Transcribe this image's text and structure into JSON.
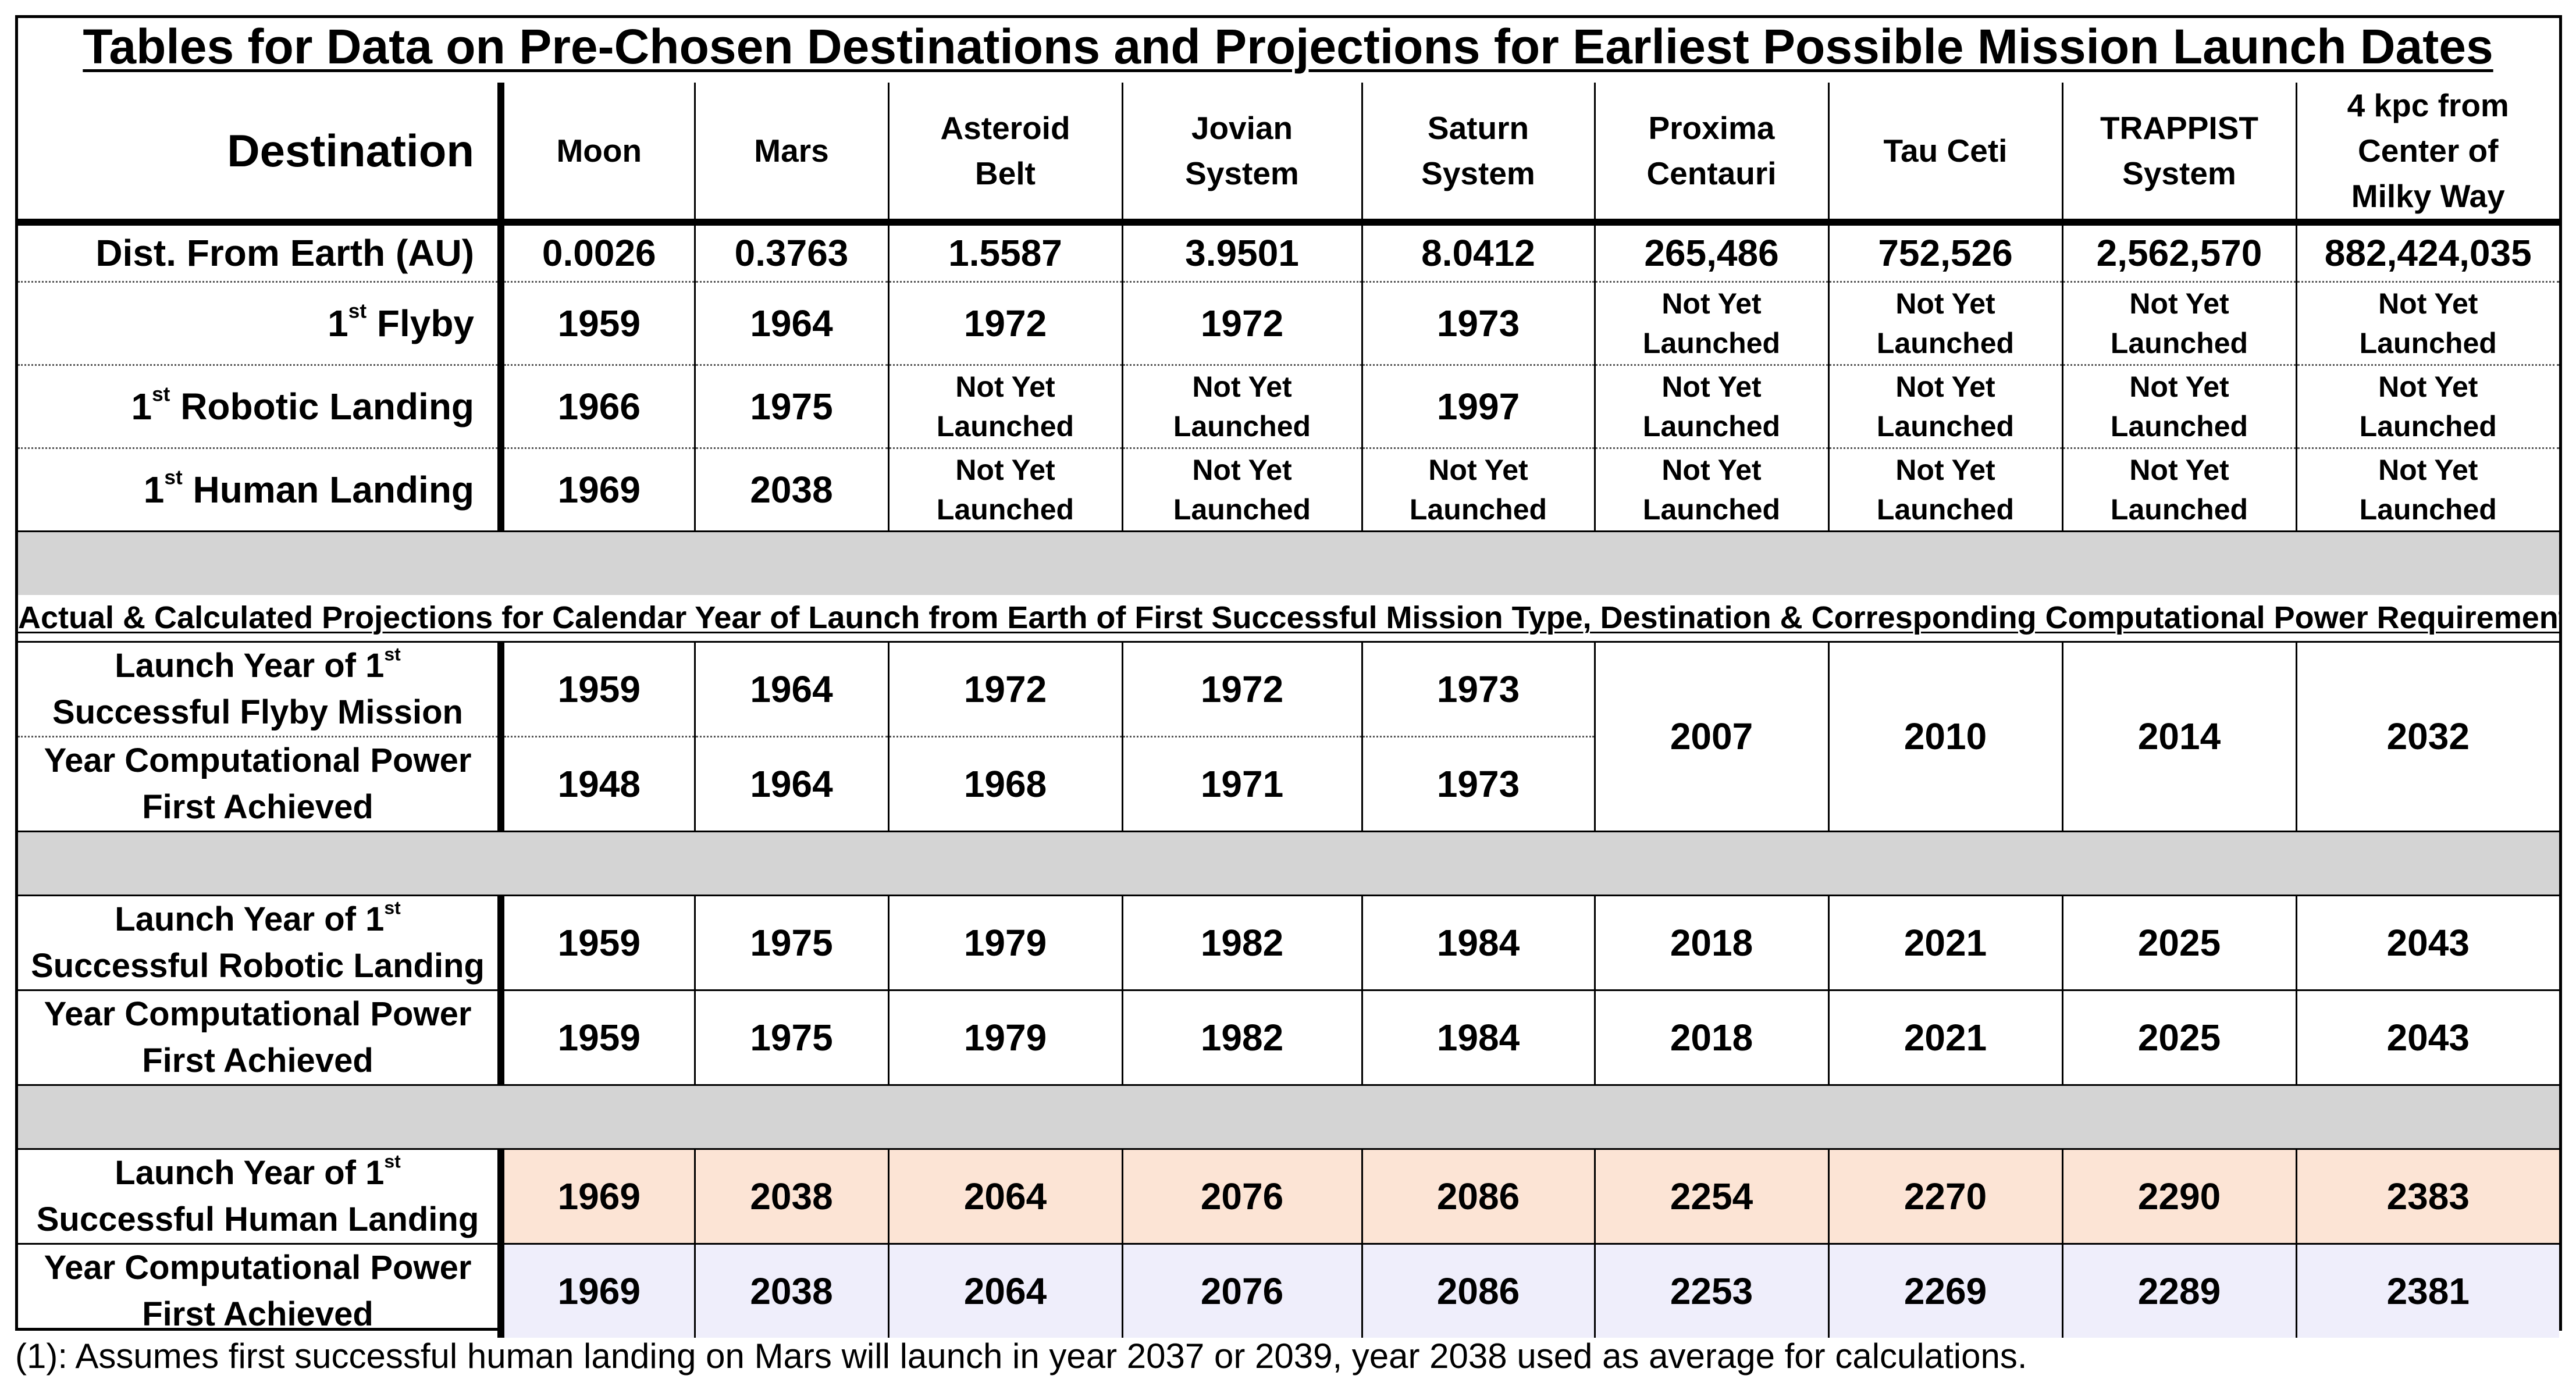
{
  "title": "Tables for Data on Pre-Chosen Destinations and Projections for Earliest Possible Mission Launch Dates",
  "header": {
    "label": "Destination",
    "destinations": [
      [
        "Moon"
      ],
      [
        "Mars"
      ],
      [
        "Asteroid",
        "Belt"
      ],
      [
        "Jovian",
        "System"
      ],
      [
        "Saturn",
        "System"
      ],
      [
        "Proxima",
        "Centauri"
      ],
      [
        "Tau Ceti"
      ],
      [
        "TRAPPIST",
        "System"
      ],
      [
        "4 kpc from",
        "Center of",
        "Milky Way"
      ]
    ]
  },
  "table1": {
    "distance": {
      "label": "Dist. From Earth (AU)",
      "values": [
        "0.0026",
        "0.3763",
        "1.5587",
        "3.9501",
        "8.0412",
        "265,486",
        "752,526",
        "2,562,570",
        "882,424,035"
      ]
    },
    "flyby": {
      "label_pre": "1",
      "label_sup": "st",
      "label_post": " Flyby",
      "values": [
        "1959",
        "1964",
        "1972",
        "1972",
        "1973",
        "Not Yet Launched",
        "Not Yet Launched",
        "Not Yet Launched",
        "Not Yet Launched"
      ]
    },
    "robotic": {
      "label_pre": "1",
      "label_sup": "st",
      "label_post": " Robotic Landing",
      "values": [
        "1966",
        "1975",
        "Not Yet Launched",
        "Not Yet Launched",
        "1997",
        "Not Yet Launched",
        "Not Yet Launched",
        "Not Yet Launched",
        "Not Yet Launched"
      ]
    },
    "human": {
      "label_pre": "1",
      "label_sup": "st",
      "label_post": " Human Landing",
      "values": [
        "1969",
        "2038",
        "Not Yet Launched",
        "Not Yet Launched",
        "Not Yet Launched",
        "Not Yet Launched",
        "Not Yet Launched",
        "Not Yet Launched",
        "Not Yet Launched"
      ],
      "mars_note": "(1)"
    }
  },
  "caption": "Actual & Calculated Projections for Calendar Year of Launch from Earth of First Successful Mission Type, Destination & Corresponding Computational Power Requirement",
  "projections": {
    "flyby_launch": {
      "label_a": "Launch Year of 1",
      "label_sup": "st",
      "label_b": "Successful Flyby Mission",
      "values": [
        "1959",
        "1964",
        "1972",
        "1972",
        "1973"
      ]
    },
    "flyby_comp": {
      "label_a": "Year Computational Power",
      "label_b": "First Achieved",
      "values": [
        "1948",
        "1964",
        "1968",
        "1971",
        "1973"
      ]
    },
    "flyby_merged": [
      "2007",
      "2010",
      "2014",
      "2032"
    ],
    "robotic_launch": {
      "label_a": "Launch Year of 1",
      "label_sup": "st",
      "label_b": "Successful Robotic Landing",
      "values": [
        "1959",
        "1975",
        "1979",
        "1982",
        "1984",
        "2018",
        "2021",
        "2025",
        "2043"
      ]
    },
    "robotic_comp": {
      "label_a": "Year Computational Power",
      "label_b": "First Achieved",
      "values": [
        "1959",
        "1975",
        "1979",
        "1982",
        "1984",
        "2018",
        "2021",
        "2025",
        "2043"
      ]
    },
    "human_launch": {
      "label_a": "Launch Year of 1",
      "label_sup": "st",
      "label_b": "Successful Human Landing",
      "values": [
        "1969",
        "2038",
        "2064",
        "2076",
        "2086",
        "2254",
        "2270",
        "2290",
        "2383"
      ]
    },
    "human_comp": {
      "label_a": "Year Computational Power",
      "label_b": "First Achieved",
      "values": [
        "1969",
        "2038",
        "2064",
        "2076",
        "2086",
        "2253",
        "2269",
        "2289",
        "2381"
      ]
    }
  },
  "colors": {
    "gray_band": "#d4d4d4",
    "human_row": "#fce4d5",
    "comp_row": "#efeefb"
  },
  "footnote": "(1): Assumes first successful human landing on Mars will launch in year 2037 or 2039, year 2038 used as average for calculations."
}
